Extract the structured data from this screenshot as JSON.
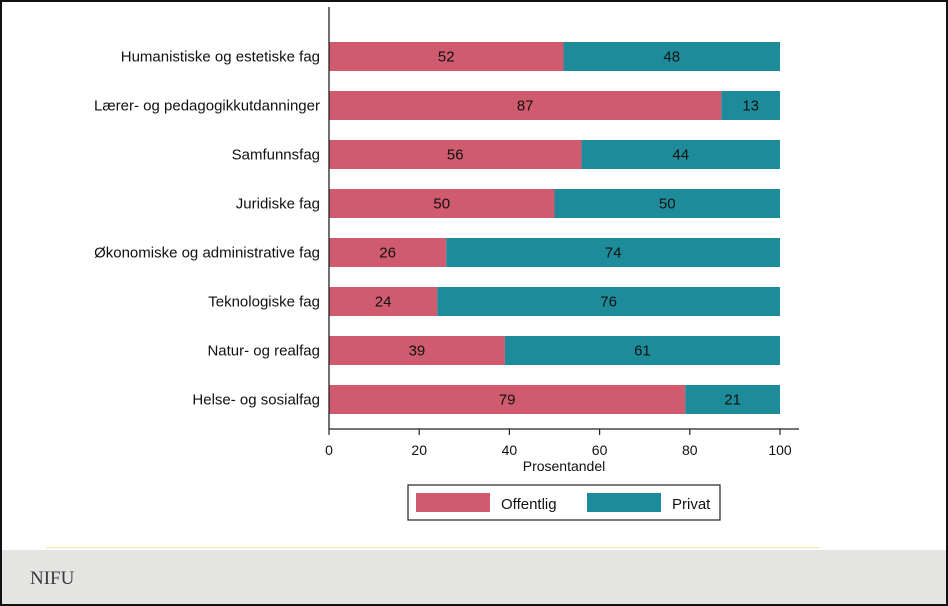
{
  "chart_data": {
    "type": "bar",
    "orientation": "horizontal",
    "stacked": true,
    "categories": [
      "Humanistiske og estetiske fag",
      "Lærer- og pedagogikkutdanninger",
      "Samfunnsfag",
      "Juridiske fag",
      "Økonomiske og administrative fag",
      "Teknologiske fag",
      "Natur- og realfag",
      "Helse- og sosialfag"
    ],
    "series": [
      {
        "name": "Offentlig",
        "color": "#d05a6e",
        "values": [
          52,
          87,
          56,
          50,
          26,
          24,
          39,
          79
        ]
      },
      {
        "name": "Privat",
        "color": "#1e8b9a",
        "values": [
          48,
          13,
          44,
          50,
          74,
          76,
          61,
          21
        ]
      }
    ],
    "xlabel": "Prosentandel",
    "xlim": [
      0,
      100
    ],
    "xticks": [
      "0",
      "20",
      "40",
      "60",
      "80",
      "100"
    ],
    "legend_position": "bottom",
    "grid": false
  },
  "footer": {
    "source": "NIFU"
  }
}
